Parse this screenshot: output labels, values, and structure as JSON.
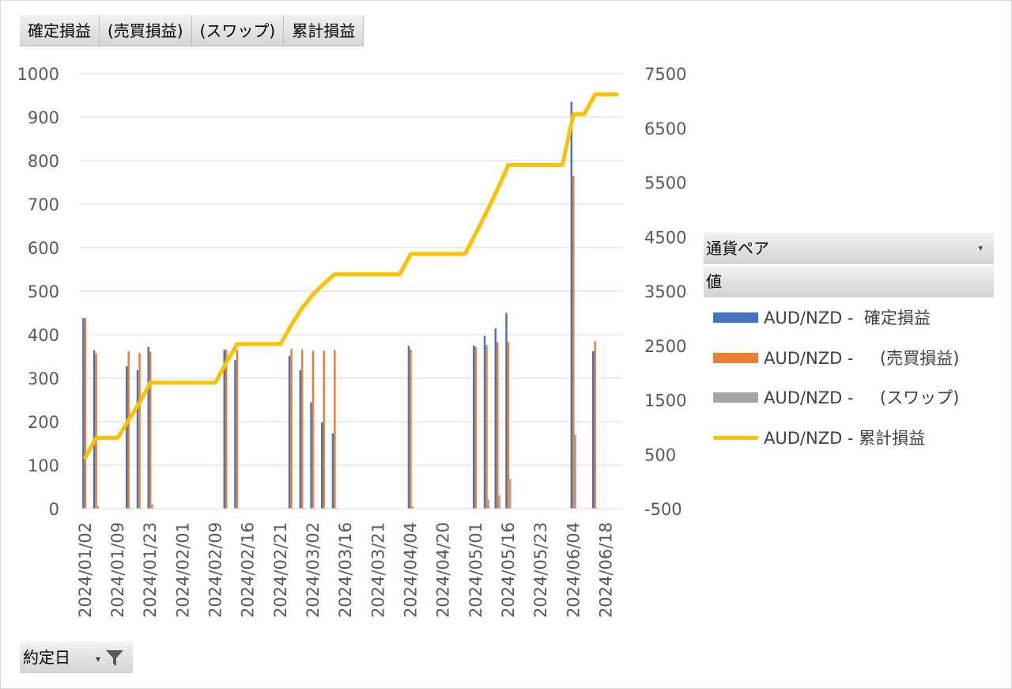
{
  "field_buttons": [
    "確定損益",
    "(売買損益)",
    "(スワップ)",
    "累計損益"
  ],
  "legend": {
    "header": "通貨ペア",
    "subheader": "値",
    "items": [
      {
        "label": "AUD/NZD -  確定損益",
        "type": "bar",
        "color": "#4472C4"
      },
      {
        "label": "AUD/NZD -     (売買損益)",
        "type": "bar",
        "color": "#ED7D31"
      },
      {
        "label": "AUD/NZD -     (スワップ)",
        "type": "bar",
        "color": "#A5A5A5"
      },
      {
        "label": "AUD/NZD - 累計損益",
        "type": "line",
        "color": "#FFC000"
      }
    ]
  },
  "filter_button": {
    "label": "約定日"
  },
  "chart_data": {
    "type": "bar",
    "categories": [
      "2024/01/02",
      "2024/01/03",
      "2024/01/08",
      "2024/01/09",
      "2024/01/10",
      "2024/01/17",
      "2024/01/23",
      "2024/01/24",
      "2024/01/29",
      "2024/02/01",
      "2024/02/05",
      "2024/02/06",
      "2024/02/09",
      "2024/02/14",
      "2024/02/15",
      "2024/02/16",
      "2024/02/19",
      "2024/02/20",
      "2024/02/21",
      "2024/02/27",
      "2024/03/01",
      "2024/03/02",
      "2024/03/07",
      "2024/03/08",
      "2024/03/16",
      "2024/03/19",
      "2024/03/20",
      "2024/03/21",
      "2024/03/27",
      "2024/04/01",
      "2024/04/04",
      "2024/04/17",
      "2024/04/18",
      "2024/04/20",
      "2024/04/24",
      "2024/04/26",
      "2024/05/01",
      "2024/05/09",
      "2024/05/15",
      "2024/05/16",
      "2024/05/21",
      "2024/05/22",
      "2024/05/23",
      "2024/05/28",
      "2024/06/03",
      "2024/06/04",
      "2024/06/06",
      "2024/06/13",
      "2024/06/18",
      "2024/06/19"
    ],
    "tick_labels": [
      "2024/01/02",
      "2024/01/09",
      "2024/01/23",
      "2024/02/01",
      "2024/02/09",
      "2024/02/16",
      "2024/02/21",
      "2024/03/02",
      "2024/03/16",
      "2024/03/21",
      "2024/04/04",
      "2024/04/20",
      "2024/05/01",
      "2024/05/16",
      "2024/05/23",
      "2024/06/04",
      "2024/06/18"
    ],
    "series": [
      {
        "name": "AUD/NZD -  確定損益",
        "type": "bar",
        "axis": "primary",
        "color": "#4472C4",
        "values": [
          438,
          364,
          0,
          0,
          327,
          318,
          372,
          0,
          0,
          0,
          0,
          0,
          0,
          365,
          342,
          0,
          0,
          0,
          0,
          351,
          318,
          244,
          198,
          173,
          0,
          0,
          0,
          0,
          0,
          0,
          374,
          0,
          0,
          0,
          0,
          0,
          375,
          397,
          414,
          450,
          0,
          0,
          0,
          0,
          0,
          935,
          0,
          362,
          0,
          0
        ]
      },
      {
        "name": "AUD/NZD -     (売買損益)",
        "type": "bar",
        "axis": "primary",
        "color": "#ED7D31",
        "values": [
          438,
          357,
          0,
          0,
          362,
          358,
          361,
          0,
          0,
          0,
          0,
          0,
          0,
          365,
          365,
          0,
          0,
          0,
          0,
          367,
          365,
          363,
          363,
          364,
          0,
          0,
          0,
          0,
          0,
          0,
          366,
          0,
          0,
          0,
          0,
          0,
          372,
          376,
          383,
          383,
          0,
          0,
          0,
          0,
          0,
          765,
          0,
          385,
          0,
          0
        ]
      },
      {
        "name": "AUD/NZD -     (スワップ)",
        "type": "bar",
        "axis": "primary",
        "color": "#A5A5A5",
        "values": [
          0,
          6,
          0,
          0,
          -2,
          -2,
          10,
          0,
          0,
          0,
          0,
          0,
          0,
          0,
          -2,
          0,
          0,
          0,
          0,
          -2,
          -2,
          -2,
          -2,
          -2,
          0,
          0,
          0,
          0,
          0,
          0,
          5,
          0,
          0,
          0,
          0,
          0,
          0,
          21,
          31,
          68,
          0,
          0,
          0,
          0,
          0,
          170,
          0,
          -2,
          0,
          0
        ]
      },
      {
        "name": "AUD/NZD - 累計損益",
        "type": "line",
        "axis": "secondary",
        "color": "#FFC000",
        "values": [
          438,
          802,
          802,
          802,
          1129,
          1447,
          1819,
          1819,
          1819,
          1819,
          1819,
          1819,
          1819,
          2184,
          2526,
          2526,
          2526,
          2526,
          2526,
          2877,
          3195,
          3439,
          3637,
          3810,
          3810,
          3810,
          3810,
          3810,
          3810,
          3810,
          4184,
          4184,
          4184,
          4184,
          4184,
          4184,
          4559,
          4956,
          5370,
          5820,
          5820,
          5820,
          5820,
          5820,
          5820,
          6755,
          6755,
          7117,
          7117,
          7117
        ]
      }
    ],
    "y_primary": {
      "min": 0,
      "max": 1000,
      "ticks": [
        0,
        100,
        200,
        300,
        400,
        500,
        600,
        700,
        800,
        900,
        1000
      ]
    },
    "y_secondary": {
      "min": -500,
      "max": 7500,
      "ticks": [
        -500,
        500,
        1500,
        2500,
        3500,
        4500,
        5500,
        6500,
        7500
      ]
    },
    "grid": true,
    "legend_position": "right"
  }
}
